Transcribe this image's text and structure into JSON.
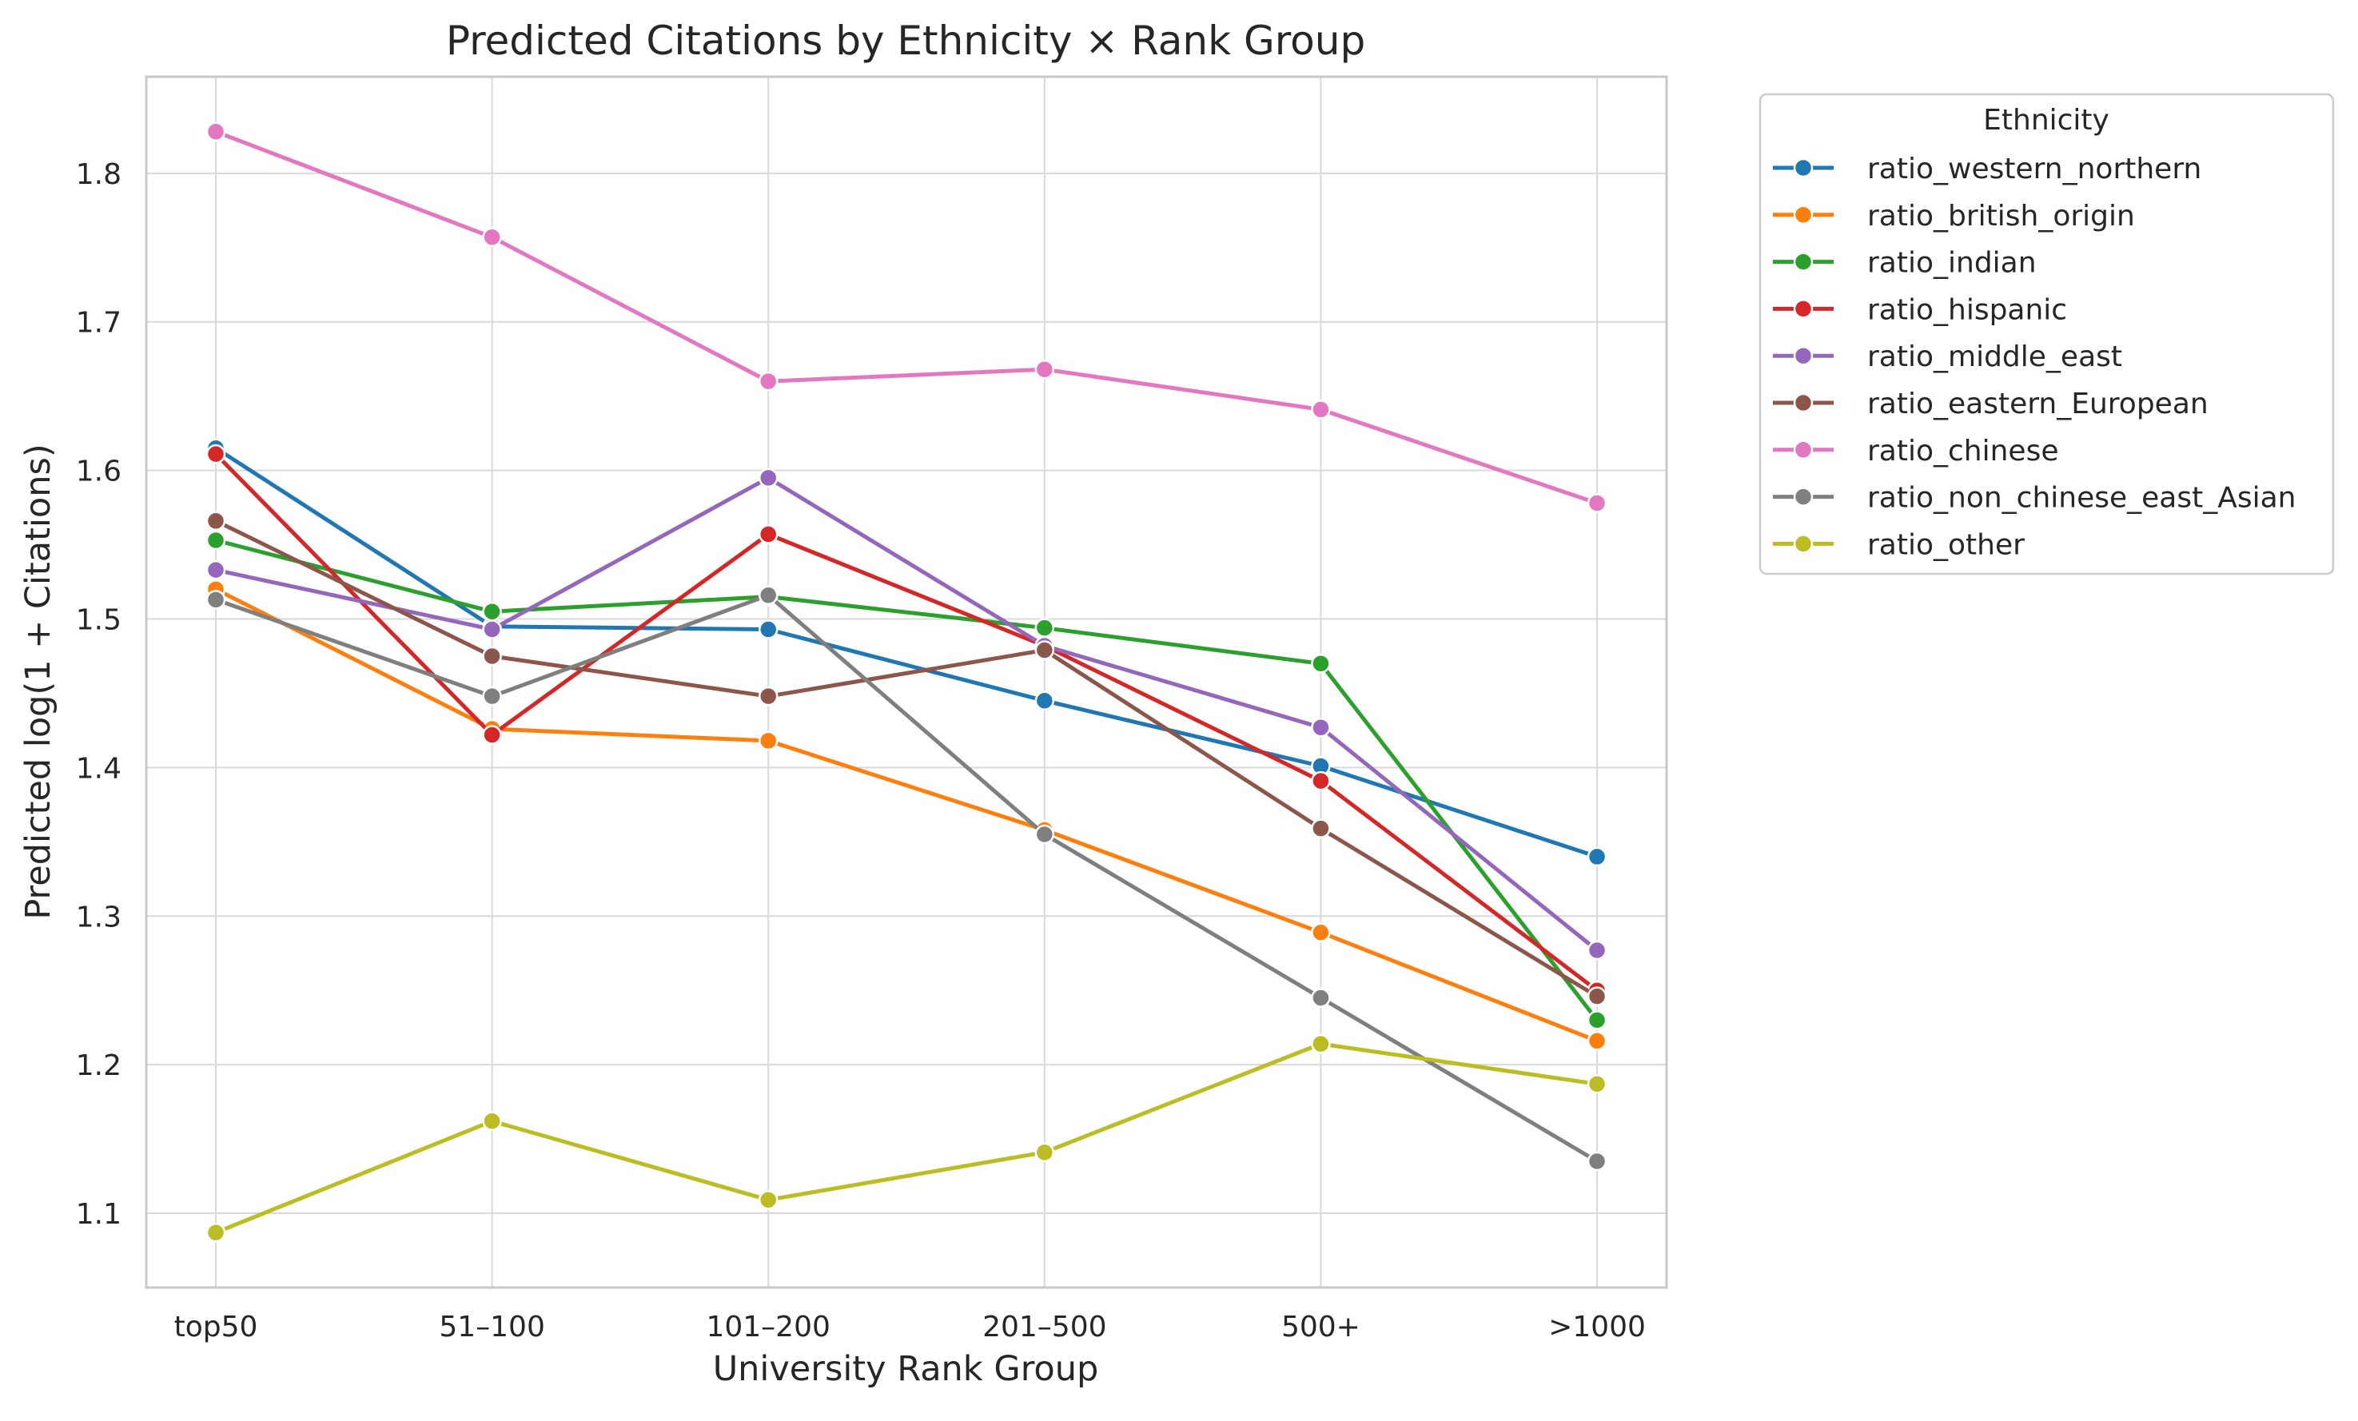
{
  "chart_data": {
    "type": "line",
    "title": "Predicted Citations by Ethnicity × Rank Group",
    "xlabel": "University Rank Group",
    "ylabel": "Predicted log(1 + Citations)",
    "categories": [
      "top50",
      "51–100",
      "101–200",
      "201–500",
      "500+",
      ">1000"
    ],
    "ylim": [
      1.05,
      1.865
    ],
    "yticks": [
      "1.1",
      "1.2",
      "1.3",
      "1.4",
      "1.5",
      "1.6",
      "1.7",
      "1.8"
    ],
    "grid": true,
    "legend_title": "Ethnicity",
    "legend_position": "outside upper right",
    "series": [
      {
        "name": "ratio_western_northern",
        "color": "#1f77b4",
        "values": [
          1.615,
          1.495,
          1.493,
          1.445,
          1.401,
          1.34
        ]
      },
      {
        "name": "ratio_british_origin",
        "color": "#ff7f0e",
        "values": [
          1.52,
          1.426,
          1.418,
          1.358,
          1.289,
          1.216
        ]
      },
      {
        "name": "ratio_indian",
        "color": "#2ca02c",
        "values": [
          1.553,
          1.505,
          1.515,
          1.494,
          1.47,
          1.23
        ]
      },
      {
        "name": "ratio_hispanic",
        "color": "#d62728",
        "values": [
          1.611,
          1.422,
          1.557,
          1.482,
          1.391,
          1.25
        ]
      },
      {
        "name": "ratio_middle_east",
        "color": "#9467bd",
        "values": [
          1.533,
          1.493,
          1.595,
          1.482,
          1.427,
          1.277
        ]
      },
      {
        "name": "ratio_eastern_European",
        "color": "#8c564b",
        "values": [
          1.566,
          1.475,
          1.448,
          1.479,
          1.359,
          1.246
        ]
      },
      {
        "name": "ratio_chinese",
        "color": "#e377c2",
        "values": [
          1.828,
          1.757,
          1.66,
          1.668,
          1.641,
          1.578
        ]
      },
      {
        "name": "ratio_non_chinese_east_Asian",
        "color": "#7f7f7f",
        "values": [
          1.513,
          1.448,
          1.516,
          1.355,
          1.245,
          1.135
        ]
      },
      {
        "name": "ratio_other",
        "color": "#bcbd22",
        "values": [
          1.087,
          1.162,
          1.109,
          1.141,
          1.214,
          1.187
        ]
      }
    ]
  }
}
